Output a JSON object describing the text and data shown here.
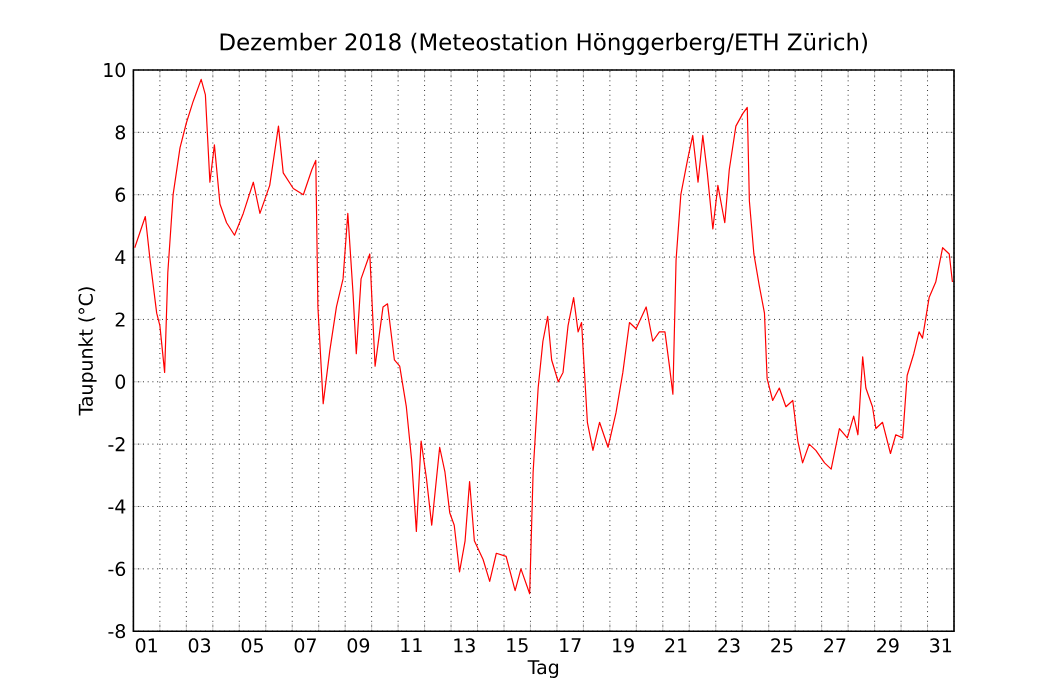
{
  "chart_data": {
    "type": "line",
    "title": "Dezember 2018  (Meteostation Hönggerberg/ETH Zürich)",
    "xlabel": "Tag",
    "ylabel": "Taupunkt (°C)",
    "xlim": [
      1,
      32
    ],
    "ylim": [
      -8,
      10
    ],
    "xticks": [
      {
        "value": 1,
        "label": null
      },
      {
        "value": 1.5,
        "label": "01"
      },
      {
        "value": 2,
        "label": null
      },
      {
        "value": 3,
        "label": null
      },
      {
        "value": 3.5,
        "label": "03"
      },
      {
        "value": 4,
        "label": null
      },
      {
        "value": 5,
        "label": null
      },
      {
        "value": 5.5,
        "label": "05"
      },
      {
        "value": 6,
        "label": null
      },
      {
        "value": 7,
        "label": null
      },
      {
        "value": 7.5,
        "label": "07"
      },
      {
        "value": 8,
        "label": null
      },
      {
        "value": 9,
        "label": null
      },
      {
        "value": 9.5,
        "label": "09"
      },
      {
        "value": 10,
        "label": null
      },
      {
        "value": 11,
        "label": null
      },
      {
        "value": 11.5,
        "label": "11"
      },
      {
        "value": 12,
        "label": null
      },
      {
        "value": 13,
        "label": null
      },
      {
        "value": 13.5,
        "label": "13"
      },
      {
        "value": 14,
        "label": null
      },
      {
        "value": 15,
        "label": null
      },
      {
        "value": 15.5,
        "label": "15"
      },
      {
        "value": 16,
        "label": null
      },
      {
        "value": 17,
        "label": null
      },
      {
        "value": 17.5,
        "label": "17"
      },
      {
        "value": 18,
        "label": null
      },
      {
        "value": 19,
        "label": null
      },
      {
        "value": 19.5,
        "label": "19"
      },
      {
        "value": 20,
        "label": null
      },
      {
        "value": 21,
        "label": null
      },
      {
        "value": 21.5,
        "label": "21"
      },
      {
        "value": 22,
        "label": null
      },
      {
        "value": 23,
        "label": null
      },
      {
        "value": 23.5,
        "label": "23"
      },
      {
        "value": 24,
        "label": null
      },
      {
        "value": 25,
        "label": null
      },
      {
        "value": 25.5,
        "label": "25"
      },
      {
        "value": 26,
        "label": null
      },
      {
        "value": 27,
        "label": null
      },
      {
        "value": 27.5,
        "label": "27"
      },
      {
        "value": 28,
        "label": null
      },
      {
        "value": 29,
        "label": null
      },
      {
        "value": 29.5,
        "label": "29"
      },
      {
        "value": 30,
        "label": null
      },
      {
        "value": 31,
        "label": null
      },
      {
        "value": 31.5,
        "label": "31"
      },
      {
        "value": 32,
        "label": null
      }
    ],
    "yticks": [
      -8,
      -6,
      -4,
      -2,
      0,
      2,
      4,
      6,
      8,
      10
    ],
    "grid": true,
    "marker": "none",
    "line_style": "solid",
    "series": [
      {
        "color": "#ff0000",
        "x": [
          1.05,
          1.45,
          1.63,
          1.88,
          2.0,
          2.18,
          2.3,
          2.5,
          2.76,
          3.0,
          3.26,
          3.56,
          3.72,
          3.89,
          4.06,
          4.27,
          4.52,
          4.82,
          5.15,
          5.53,
          5.78,
          6.15,
          6.48,
          6.66,
          7.04,
          7.42,
          7.74,
          7.89,
          7.97,
          8.17,
          8.42,
          8.67,
          8.92,
          9.1,
          9.3,
          9.42,
          9.6,
          9.93,
          10.13,
          10.43,
          10.6,
          10.86,
          11.06,
          11.31,
          11.51,
          11.69,
          11.87,
          12.07,
          12.27,
          12.57,
          12.77,
          12.95,
          13.12,
          13.32,
          13.53,
          13.7,
          13.88,
          14.21,
          14.46,
          14.71,
          15.08,
          15.42,
          15.64,
          15.97,
          16.1,
          16.29,
          16.47,
          16.65,
          16.8,
          17.05,
          17.23,
          17.42,
          17.63,
          17.8,
          17.93,
          18.15,
          18.36,
          18.61,
          18.93,
          19.23,
          19.49,
          19.74,
          19.99,
          20.37,
          20.62,
          20.87,
          21.08,
          21.25,
          21.38,
          21.5,
          21.68,
          21.93,
          22.13,
          22.33,
          22.51,
          22.68,
          22.89,
          23.08,
          23.34,
          23.51,
          23.76,
          24.02,
          24.19,
          24.27,
          24.44,
          24.64,
          24.84,
          24.94,
          25.15,
          25.4,
          25.65,
          25.91,
          26.1,
          26.28,
          26.53,
          26.78,
          27.11,
          27.36,
          27.67,
          27.97,
          28.21,
          28.37,
          28.55,
          28.67,
          28.92,
          29.05,
          29.3,
          29.6,
          29.8,
          30.06,
          30.23,
          30.48,
          30.68,
          30.81,
          31.06,
          31.31,
          31.57,
          31.82,
          31.94
        ],
        "values": [
          4.3,
          5.3,
          3.9,
          2.2,
          1.8,
          0.3,
          3.5,
          6.0,
          7.5,
          8.3,
          9.0,
          9.7,
          9.2,
          6.4,
          7.6,
          5.7,
          5.1,
          4.7,
          5.4,
          6.4,
          5.4,
          6.3,
          8.2,
          6.7,
          6.2,
          6.0,
          6.8,
          7.1,
          2.4,
          -0.7,
          1.0,
          2.4,
          3.3,
          5.4,
          2.8,
          0.9,
          3.3,
          4.1,
          0.5,
          2.4,
          2.5,
          0.7,
          0.5,
          -0.8,
          -2.5,
          -4.8,
          -1.9,
          -3.1,
          -4.6,
          -2.1,
          -2.9,
          -4.2,
          -4.6,
          -6.1,
          -5.1,
          -3.2,
          -5.1,
          -5.7,
          -6.4,
          -5.5,
          -5.6,
          -6.7,
          -6.0,
          -6.8,
          -2.9,
          -0.2,
          1.3,
          2.1,
          0.7,
          0.0,
          0.3,
          1.8,
          2.7,
          1.6,
          1.9,
          -1.3,
          -2.2,
          -1.3,
          -2.1,
          -1.0,
          0.3,
          1.9,
          1.7,
          2.4,
          1.3,
          1.6,
          1.6,
          0.5,
          -0.4,
          3.9,
          6.0,
          7.1,
          7.9,
          6.4,
          7.9,
          6.7,
          4.9,
          6.3,
          5.1,
          6.8,
          8.2,
          8.6,
          8.8,
          5.8,
          4.1,
          3.1,
          2.2,
          0.1,
          -0.6,
          -0.2,
          -0.8,
          -0.6,
          -1.9,
          -2.6,
          -2.0,
          -2.2,
          -2.6,
          -2.8,
          -1.5,
          -1.8,
          -1.1,
          -1.7,
          0.8,
          -0.2,
          -0.8,
          -1.5,
          -1.3,
          -2.3,
          -1.7,
          -1.8,
          0.2,
          0.9,
          1.6,
          1.4,
          2.7,
          3.2,
          4.3,
          4.1,
          3.2
        ]
      }
    ]
  }
}
